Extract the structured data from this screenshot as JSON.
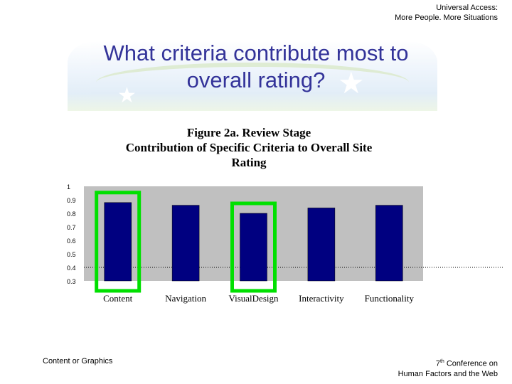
{
  "header": {
    "line1": "Universal Access:",
    "line2": "More People. More Situations"
  },
  "slide": {
    "title_line1": "What criteria contribute most to",
    "title_line2": "overall rating?"
  },
  "chart_data": {
    "type": "bar",
    "title_lines": [
      "Figure 2a. Review Stage",
      "Contribution of Specific Criteria to Overall Site",
      "Rating"
    ],
    "categories": [
      "Content",
      "Navigation",
      "VisualDesign",
      "Interactivity",
      "Functionality"
    ],
    "values": [
      0.88,
      0.86,
      0.8,
      0.84,
      0.86
    ],
    "ylim": [
      0.3,
      1
    ],
    "yticks": [
      "1",
      "0.9",
      "0.8",
      "0.7",
      "0.6",
      "0.5",
      "0.4",
      "0.3"
    ],
    "reference_line": 0.4,
    "highlighted": [
      "Content",
      "VisualDesign"
    ],
    "colors": {
      "bar": "#000080",
      "plot_bg": "#c0c0c0",
      "highlight": "#00e000",
      "title": "#333399"
    },
    "xlabel": "",
    "ylabel": "",
    "grid": false
  },
  "footer": {
    "left": "Content or Graphics",
    "right_sup": "th",
    "right_line1_num": "7",
    "right_line1_rest": " Conference on",
    "right_line2": "Human Factors and the Web"
  }
}
